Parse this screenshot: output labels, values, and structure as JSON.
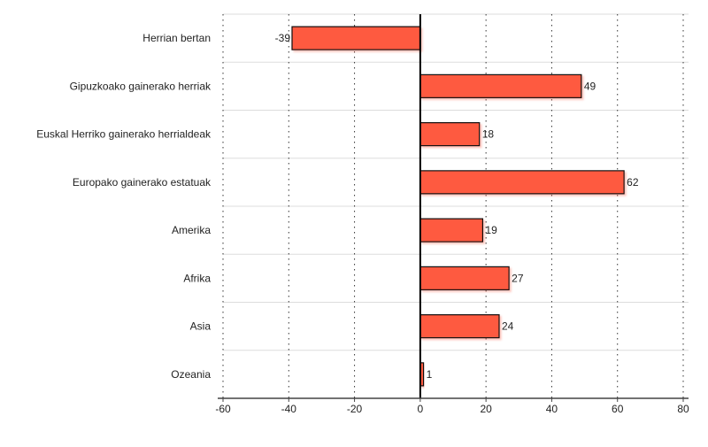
{
  "chart_data": {
    "type": "bar",
    "orientation": "horizontal",
    "title": "",
    "xlabel": "",
    "ylabel": "",
    "categories": [
      "Herrian bertan",
      "Gipuzkoako gainerako herriak",
      "Euskal Herriko gainerako herrialdeak",
      "Europako gainerako estatuak",
      "Amerika",
      "Afrika",
      "Asia",
      "Ozeania"
    ],
    "values": [
      -39,
      49,
      18,
      62,
      19,
      27,
      24,
      1
    ],
    "data_labels": [
      "-39",
      "49",
      "18",
      "62",
      "19",
      "27",
      "24",
      "1"
    ],
    "xlim": [
      -60,
      80
    ],
    "xticks": [
      -60,
      -40,
      -20,
      0,
      20,
      40,
      60,
      80
    ],
    "xtick_labels": [
      "-60",
      "-40",
      "-20",
      "0",
      "20",
      "40",
      "60",
      "80"
    ],
    "grid": true,
    "bar_color": "#fe5a3f"
  }
}
